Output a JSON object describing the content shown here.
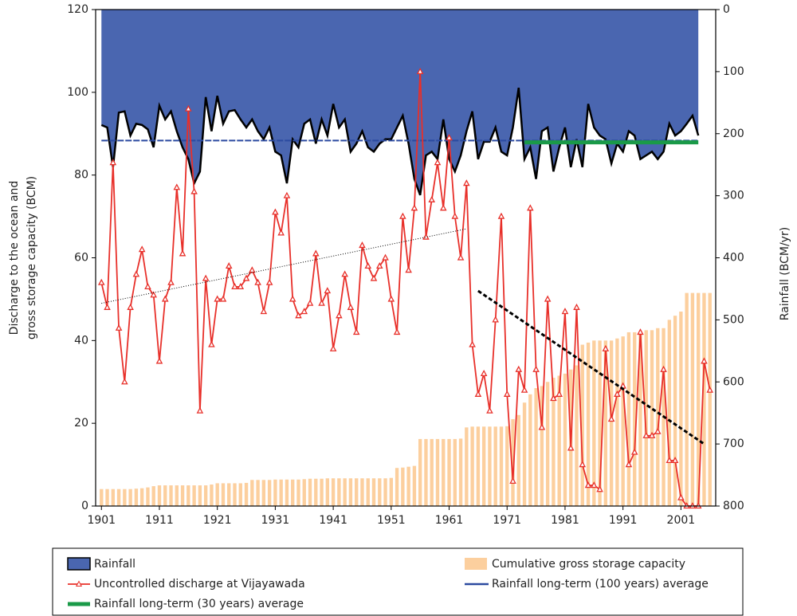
{
  "chart_data": {
    "type": "combo",
    "ylabel": [
      "Discharge to the ocean and",
      "gross storage capacity (BCM)"
    ],
    "y2label": "Rainfall (BCM/yr)",
    "xlim": [
      1900,
      2007
    ],
    "xticks": [
      1901,
      1911,
      1921,
      1931,
      1941,
      1951,
      1961,
      1971,
      1981,
      1991,
      2001
    ],
    "ylim": [
      0,
      120
    ],
    "yticks": [
      0,
      20,
      40,
      60,
      80,
      100,
      120
    ],
    "y2lim": [
      0,
      800
    ],
    "y2ticks": [
      0,
      100,
      200,
      300,
      400,
      500,
      600,
      700,
      800
    ],
    "y2_inverted": true,
    "x": [
      1901,
      1902,
      1903,
      1904,
      1905,
      1906,
      1907,
      1908,
      1909,
      1910,
      1911,
      1912,
      1913,
      1914,
      1915,
      1916,
      1917,
      1918,
      1919,
      1920,
      1921,
      1922,
      1923,
      1924,
      1925,
      1926,
      1927,
      1928,
      1929,
      1930,
      1931,
      1932,
      1933,
      1934,
      1935,
      1936,
      1937,
      1938,
      1939,
      1940,
      1941,
      1942,
      1943,
      1944,
      1945,
      1946,
      1947,
      1948,
      1949,
      1950,
      1951,
      1952,
      1953,
      1954,
      1955,
      1956,
      1957,
      1958,
      1959,
      1960,
      1961,
      1962,
      1963,
      1964,
      1965,
      1966,
      1967,
      1968,
      1969,
      1970,
      1971,
      1972,
      1973,
      1974,
      1975,
      1976,
      1977,
      1978,
      1979,
      1980,
      1981,
      1982,
      1983,
      1984,
      1985,
      1986,
      1987,
      1988,
      1989,
      1990,
      1991,
      1992,
      1993,
      1994,
      1995,
      1996,
      1997,
      1998,
      1999,
      2000,
      2001,
      2002,
      2003,
      2004,
      2005,
      2006
    ],
    "series": [
      {
        "name": "Rainfall",
        "type": "area",
        "axis": "y2",
        "color": "#4a66b0",
        "values": [
          186,
          190,
          254,
          166,
          164,
          203,
          184,
          186,
          193,
          222,
          155,
          177,
          164,
          196,
          222,
          241,
          280,
          261,
          141,
          196,
          139,
          184,
          164,
          162,
          177,
          190,
          177,
          196,
          209,
          190,
          229,
          235,
          280,
          209,
          222,
          184,
          177,
          216,
          177,
          203,
          152,
          190,
          177,
          229,
          216,
          196,
          222,
          229,
          216,
          209,
          209,
          190,
          171,
          216,
          273,
          299,
          235,
          229,
          241,
          177,
          241,
          261,
          235,
          196,
          164,
          241,
          213,
          213,
          190,
          229,
          235,
          190,
          126,
          241,
          222,
          273,
          196,
          190,
          261,
          222,
          190,
          254,
          209,
          254,
          152,
          190,
          203,
          209,
          248,
          216,
          229,
          196,
          203,
          241,
          235,
          229,
          241,
          229,
          184,
          203,
          196,
          184,
          171,
          203,
          null,
          null
        ]
      },
      {
        "name": "Uncontrolled discharge at Vijayawada",
        "type": "line",
        "color": "#e8302a",
        "values": [
          54,
          48,
          83,
          43,
          30,
          48,
          56,
          62,
          53,
          51,
          35,
          50,
          54,
          77,
          61,
          96,
          76,
          23,
          55,
          39,
          50,
          50,
          58,
          53,
          53,
          55,
          57,
          54,
          47,
          54,
          71,
          66,
          75,
          50,
          46,
          47,
          49,
          61,
          49,
          52,
          38,
          46,
          56,
          48,
          42,
          63,
          58,
          55,
          58,
          60,
          50,
          42,
          70,
          57,
          72,
          105,
          65,
          74,
          83,
          72,
          89,
          70,
          60,
          78,
          39,
          27,
          32,
          23,
          45,
          70,
          27,
          6,
          33,
          28,
          72,
          33,
          19,
          50,
          26,
          27,
          47,
          14,
          48,
          10,
          5,
          5,
          4,
          38,
          21,
          27,
          29,
          10,
          13,
          42,
          17,
          17,
          18,
          33,
          11,
          11,
          2,
          0,
          0,
          0,
          35,
          28
        ]
      },
      {
        "name": "Cumulative gross storage capacity",
        "type": "bar",
        "color": "#fccf9e",
        "values": [
          4.1,
          4.1,
          4.1,
          4.1,
          4.1,
          4.1,
          4.2,
          4.3,
          4.5,
          4.8,
          5,
          5,
          5,
          5,
          5,
          5,
          5,
          5,
          5,
          5.2,
          5.5,
          5.5,
          5.5,
          5.5,
          5.5,
          5.6,
          6.3,
          6.3,
          6.3,
          6.3,
          6.4,
          6.4,
          6.4,
          6.4,
          6.4,
          6.5,
          6.6,
          6.6,
          6.6,
          6.7,
          6.7,
          6.7,
          6.7,
          6.7,
          6.7,
          6.7,
          6.7,
          6.7,
          6.7,
          6.7,
          6.8,
          9.2,
          9.3,
          9.5,
          9.7,
          16.2,
          16.2,
          16.2,
          16.2,
          16.2,
          16.2,
          16.2,
          16.3,
          19,
          19.2,
          19.2,
          19.2,
          19.2,
          19.2,
          19.2,
          19.3,
          21,
          22,
          25,
          27,
          28.5,
          29,
          30,
          31,
          31.5,
          32,
          33,
          34,
          39,
          39.5,
          40,
          40,
          40,
          40,
          40.5,
          41,
          42,
          42,
          42,
          42.5,
          42.5,
          43,
          43,
          45,
          46,
          47,
          51.5,
          51.5,
          51.5,
          51.5,
          51.5
        ]
      }
    ],
    "reference_lines": [
      {
        "name": "Rainfall long-term (100 years) average",
        "color": "#2b4aa0",
        "axis": "y2",
        "value": 211,
        "x": [
          1901,
          2004
        ]
      },
      {
        "name": "Rainfall long-term (30 years) average",
        "color": "#1a9a48",
        "axis": "y2",
        "value": 214,
        "x": [
          1974,
          2004
        ]
      }
    ],
    "trend_lines": [
      {
        "x": [
          1901,
          1964
        ],
        "y": [
          49,
          67
        ],
        "style": "dotted"
      },
      {
        "x": [
          1966,
          2005
        ],
        "y": [
          52,
          15
        ],
        "style": "dashed"
      }
    ]
  }
}
